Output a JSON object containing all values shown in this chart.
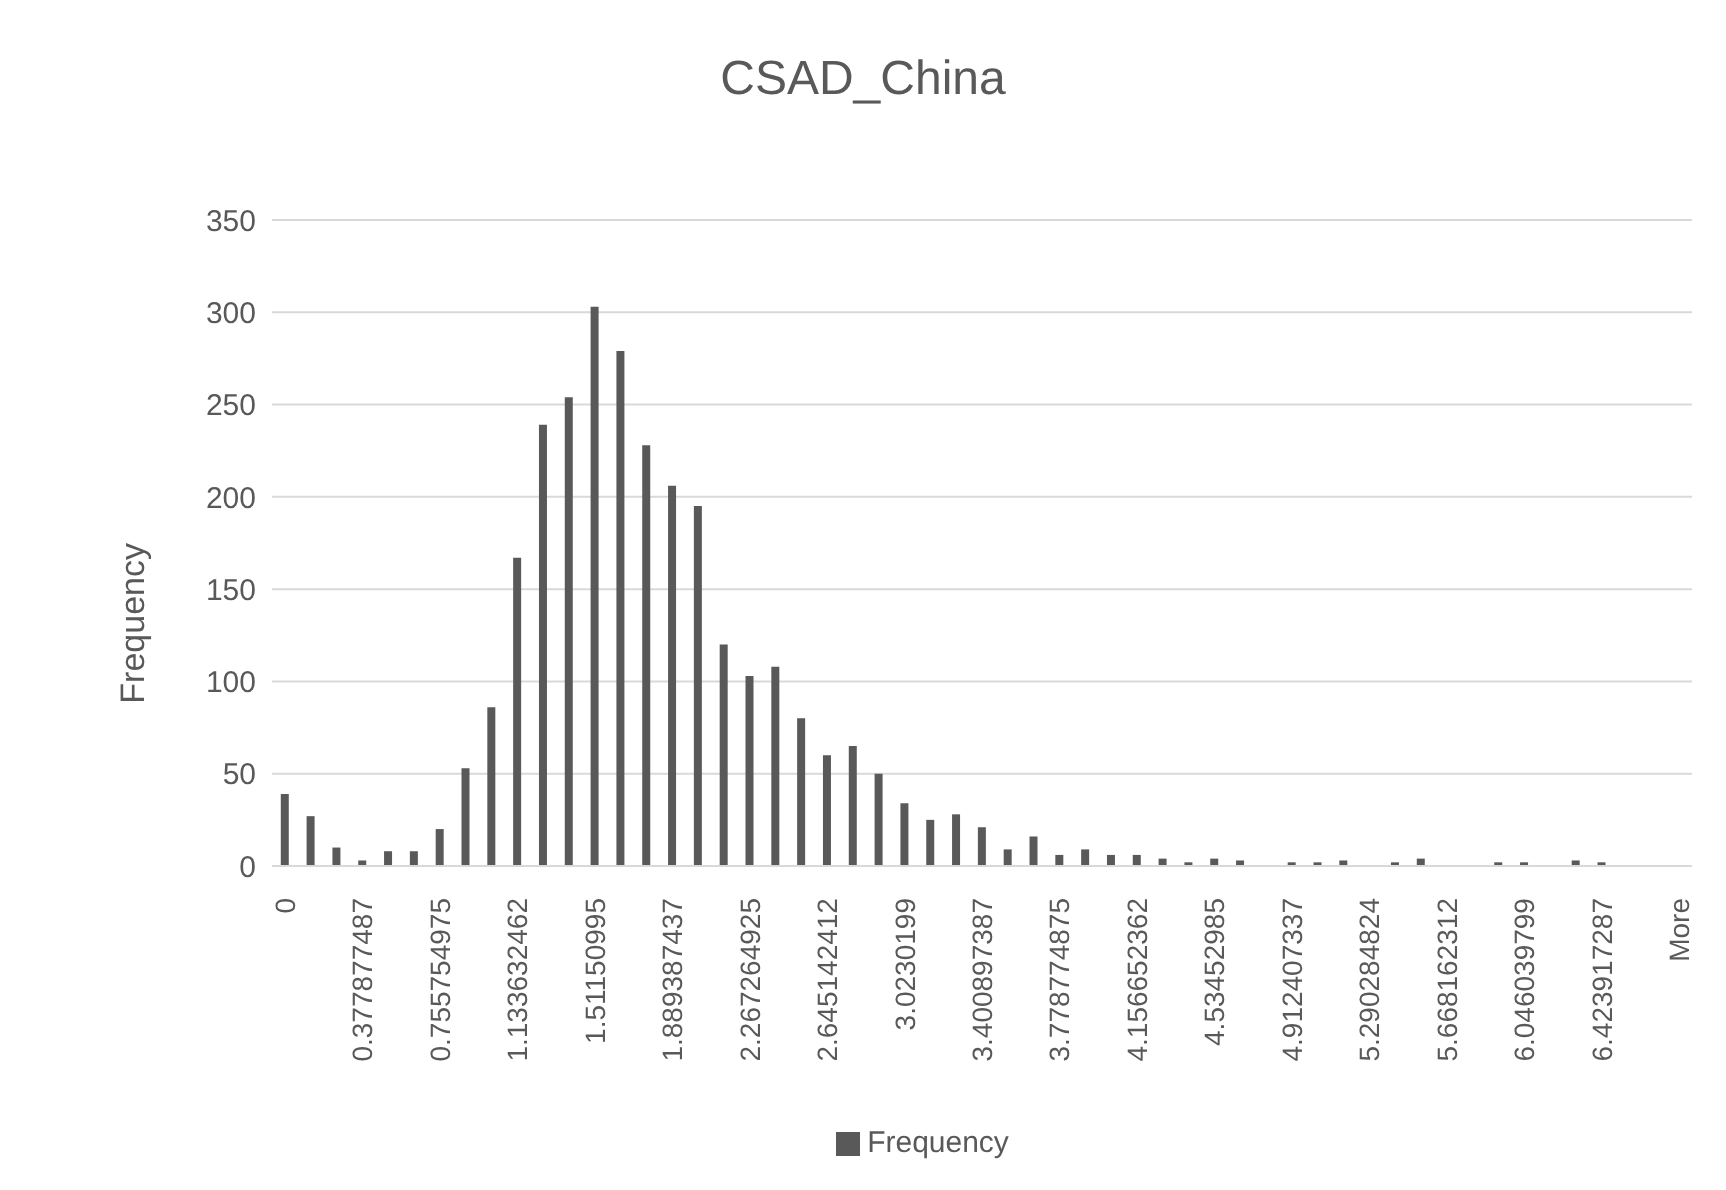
{
  "chart_data": {
    "type": "bar",
    "title": "CSAD_China",
    "ylabel": "Frequency",
    "categories": [
      "0",
      null,
      null,
      "0.377877487",
      null,
      null,
      "0.755754975",
      null,
      null,
      "1.133632462",
      null,
      null,
      "1.51150995",
      null,
      null,
      "1.889387437",
      null,
      null,
      "2.267264925",
      null,
      null,
      "2.645142412",
      null,
      null,
      "3.0230199",
      null,
      null,
      "3.400897387",
      null,
      null,
      "3.778774875",
      null,
      null,
      "4.156652362",
      null,
      null,
      "4.53452985",
      null,
      null,
      "4.912407337",
      null,
      null,
      "5.290284824",
      null,
      null,
      "5.668162312",
      null,
      null,
      "6.046039799",
      null,
      null,
      "6.423917287",
      null,
      null,
      "More"
    ],
    "series": [
      {
        "name": "Frequency",
        "color": "#595959",
        "values": [
          39,
          27,
          10,
          3,
          8,
          8,
          20,
          53,
          86,
          167,
          239,
          254,
          303,
          279,
          228,
          206,
          195,
          120,
          103,
          108,
          80,
          60,
          65,
          50,
          34,
          25,
          28,
          21,
          9,
          16,
          6,
          9,
          6,
          6,
          4,
          2,
          4,
          3,
          0,
          2,
          2,
          3,
          0,
          2,
          4,
          0,
          0,
          2,
          2,
          0,
          3,
          2,
          0,
          0,
          0
        ]
      }
    ],
    "ylim": [
      0,
      350
    ],
    "yticks": [
      0,
      50,
      100,
      150,
      200,
      250,
      300,
      350
    ],
    "grid": "y",
    "legend": "bottom"
  }
}
